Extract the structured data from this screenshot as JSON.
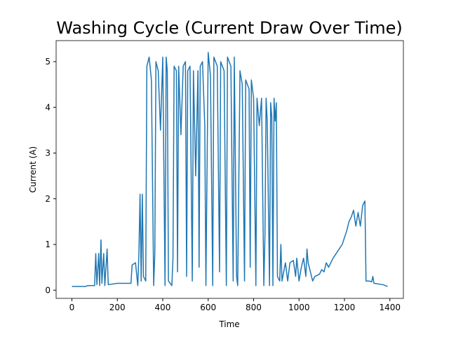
{
  "chart_data": {
    "type": "line",
    "title": "Washing Cycle (Current Draw Over Time)",
    "x_label": "Time",
    "y_label": "Current (A)",
    "x": [
      0,
      60,
      70,
      100,
      105,
      110,
      118,
      122,
      128,
      132,
      140,
      145,
      155,
      160,
      200,
      260,
      265,
      280,
      290,
      295,
      300,
      305,
      310,
      315,
      325,
      330,
      340,
      350,
      360,
      365,
      370,
      380,
      390,
      400,
      410,
      415,
      420,
      425,
      440,
      445,
      450,
      460,
      465,
      470,
      480,
      490,
      500,
      505,
      510,
      520,
      530,
      535,
      545,
      555,
      560,
      565,
      575,
      585,
      590,
      600,
      610,
      620,
      625,
      640,
      650,
      655,
      670,
      680,
      685,
      700,
      710,
      715,
      725,
      730,
      740,
      750,
      760,
      765,
      780,
      785,
      790,
      800,
      810,
      815,
      825,
      835,
      845,
      850,
      855,
      860,
      870,
      875,
      880,
      885,
      890,
      895,
      900,
      905,
      915,
      920,
      925,
      940,
      950,
      960,
      975,
      985,
      990,
      1000,
      1010,
      1020,
      1030,
      1035,
      1040,
      1050,
      1060,
      1070,
      1090,
      1100,
      1110,
      1120,
      1130,
      1150,
      1170,
      1190,
      1200,
      1210,
      1220,
      1230,
      1240,
      1250,
      1260,
      1270,
      1280,
      1290,
      1295,
      1310,
      1320,
      1325,
      1330,
      1370,
      1390
    ],
    "series": [
      {
        "name": "Current",
        "color": "#1f77b4",
        "values": [
          0.08,
          0.08,
          0.1,
          0.1,
          0.8,
          0.12,
          0.8,
          0.1,
          1.1,
          0.15,
          0.8,
          0.1,
          0.9,
          0.12,
          0.15,
          0.15,
          0.55,
          0.6,
          0.1,
          0.8,
          2.1,
          0.2,
          2.1,
          0.3,
          0.2,
          4.9,
          5.1,
          4.6,
          0.1,
          0.8,
          5.0,
          4.8,
          3.5,
          5.1,
          0.1,
          5.1,
          4.8,
          0.2,
          0.1,
          0.7,
          4.9,
          4.8,
          0.4,
          4.9,
          3.4,
          4.9,
          5.0,
          0.3,
          4.8,
          4.9,
          0.2,
          4.8,
          2.5,
          4.8,
          0.5,
          4.9,
          5.0,
          3.6,
          0.1,
          5.2,
          4.7,
          0.1,
          5.1,
          4.9,
          0.4,
          5.0,
          4.8,
          0.1,
          5.1,
          4.9,
          0.2,
          5.1,
          0.3,
          0.1,
          4.8,
          4.5,
          0.2,
          4.6,
          4.4,
          0.5,
          4.6,
          4.2,
          0.1,
          4.2,
          3.6,
          4.2,
          0.1,
          1.2,
          4.2,
          3.7,
          0.1,
          4.1,
          3.8,
          0.1,
          4.2,
          3.7,
          4.1,
          0.3,
          0.2,
          1.0,
          0.2,
          0.6,
          0.2,
          0.6,
          0.65,
          0.3,
          0.7,
          0.2,
          0.5,
          0.7,
          0.3,
          0.9,
          0.6,
          0.4,
          0.2,
          0.3,
          0.35,
          0.45,
          0.4,
          0.6,
          0.5,
          0.7,
          0.85,
          1.0,
          1.15,
          1.3,
          1.5,
          1.6,
          1.75,
          1.4,
          1.7,
          1.4,
          1.85,
          1.95,
          0.2,
          0.2,
          0.18,
          0.3,
          0.15,
          0.12,
          0.08
        ]
      }
    ],
    "xlim": [
      -69.5,
      1459.5
    ],
    "ylim": [
      -0.18,
      5.46
    ],
    "xticks": [
      0,
      200,
      400,
      600,
      800,
      1000,
      1200,
      1400
    ],
    "yticks": [
      0,
      1,
      2,
      3,
      4,
      5
    ]
  }
}
